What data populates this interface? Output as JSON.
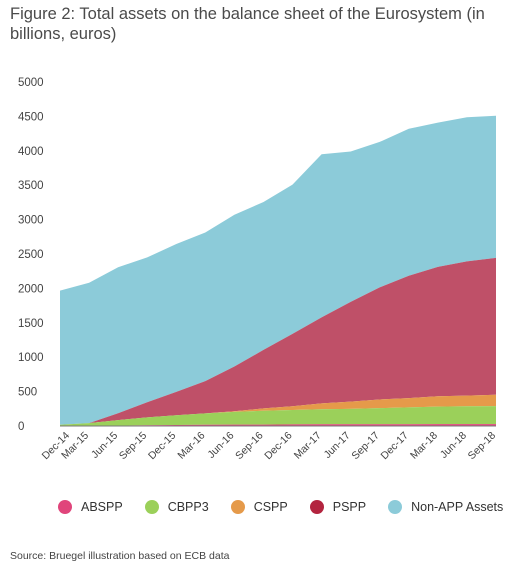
{
  "chart_data": {
    "type": "area",
    "title": "Figure 2: Total assets on the balance sheet of the Eurosystem (in billions, euros)",
    "xlabel": "",
    "ylabel": "",
    "ylim": [
      0,
      5000
    ],
    "y_ticks": [
      "0",
      "500",
      "1000",
      "1500",
      "2000",
      "2500",
      "3000",
      "3500",
      "4000",
      "4500",
      "5000"
    ],
    "categories": [
      "Dec-14",
      "Mar-15",
      "Jun-15",
      "Sep-15",
      "Dec-15",
      "Mar-16",
      "Jun-16",
      "Sep-16",
      "Dec-16",
      "Mar-17",
      "Jun-17",
      "Sep-17",
      "Dec-17",
      "Mar-18",
      "Jun-18",
      "Sep-18"
    ],
    "stacked": true,
    "series": [
      {
        "name": "ABSPP",
        "color": "#e0457b",
        "values": [
          0,
          2,
          6,
          10,
          15,
          18,
          20,
          21,
          23,
          24,
          24,
          25,
          25,
          27,
          27,
          27
        ]
      },
      {
        "name": "CBPP3",
        "color": "#9bd05a",
        "values": [
          18,
          40,
          80,
          115,
          140,
          165,
          185,
          200,
          210,
          220,
          225,
          235,
          245,
          255,
          260,
          262
        ]
      },
      {
        "name": "CSPP",
        "color": "#e59a4a",
        "values": [
          0,
          0,
          0,
          0,
          0,
          0,
          10,
          35,
          55,
          85,
          105,
          125,
          135,
          150,
          155,
          165
        ]
      },
      {
        "name": "PSPP",
        "color": "#bf5068",
        "values": [
          0,
          0,
          100,
          220,
          340,
          470,
          650,
          850,
          1050,
          1250,
          1450,
          1630,
          1780,
          1880,
          1950,
          1990
        ]
      },
      {
        "name": "Non-APP Assets",
        "color": "#8ccbd9",
        "values": [
          1950,
          2040,
          2120,
          2105,
          2150,
          2160,
          2205,
          2150,
          2170,
          2371,
          2186,
          2115,
          2135,
          2098,
          2097,
          2066
        ]
      }
    ],
    "grid": false,
    "legend_position": "bottom",
    "source": "Source:  Bruegel illustration based on ECB data"
  }
}
